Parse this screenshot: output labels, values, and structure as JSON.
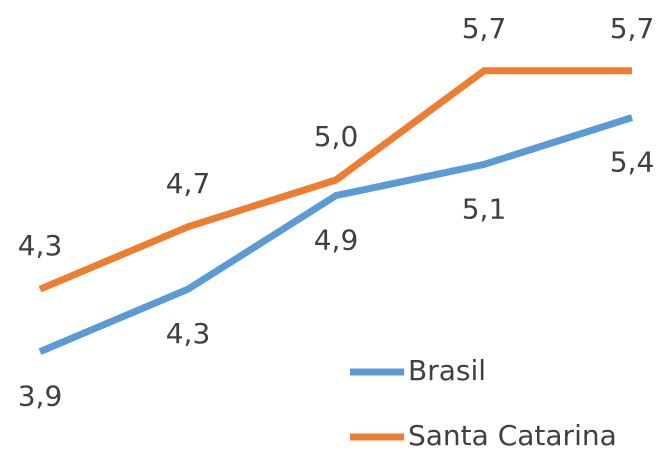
{
  "chart_data": {
    "type": "line",
    "series": [
      {
        "name": "Brasil",
        "color": "#5b9bd5",
        "values": [
          3.9,
          4.3,
          4.9,
          5.1,
          5.4
        ],
        "value_labels": [
          "3,9",
          "4,3",
          "4,9",
          "5,1",
          "5,4"
        ]
      },
      {
        "name": "Santa Catarina",
        "color": "#ed7d31",
        "values": [
          4.3,
          4.7,
          5.0,
          5.7,
          5.7
        ],
        "value_labels": [
          "4,3",
          "4,7",
          "5,0",
          "5,7",
          "5,7"
        ]
      }
    ],
    "ylim": [
      3.5,
      6.0
    ],
    "legend": "bottom-right"
  }
}
